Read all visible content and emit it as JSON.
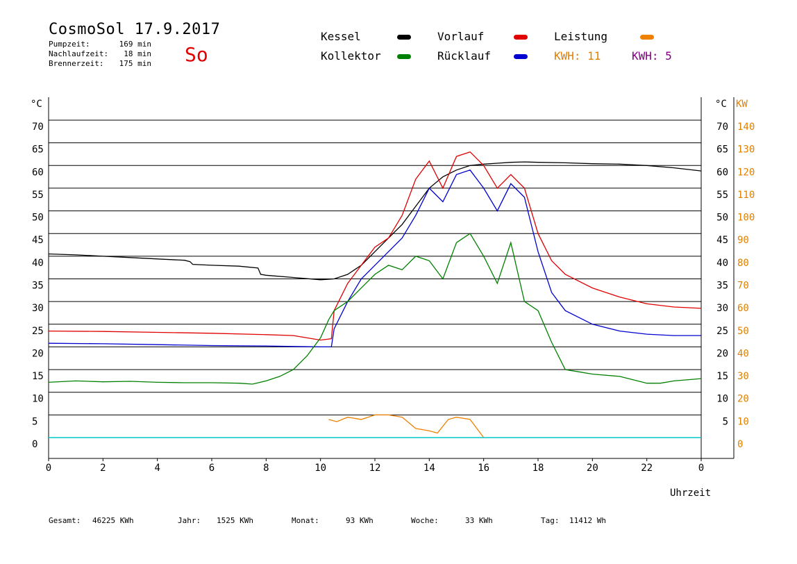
{
  "header": {
    "title": "CosmoSol 17.9.2017",
    "day": "So",
    "info": [
      {
        "label": "Pumpzeit:",
        "value": "169 min"
      },
      {
        "label": "Nachlaufzeit:",
        "value": "18 min"
      },
      {
        "label": "Brennerzeit:",
        "value": "175 min"
      }
    ]
  },
  "legend": {
    "kessel": {
      "label": "Kessel",
      "color": "#000000"
    },
    "vorlauf": {
      "label": "Vorlauf",
      "color": "#e00000"
    },
    "leistung": {
      "label": "Leistung",
      "color": "#f08000"
    },
    "kollektor": {
      "label": "Kollektor",
      "color": "#008000"
    },
    "ruecklauf": {
      "label": "Rücklauf",
      "color": "#0000d0"
    },
    "kwh1": {
      "label": "KWH: 11",
      "color": "#e08000"
    },
    "kwh2": {
      "label": "KWH: 5",
      "color": "#800080"
    }
  },
  "footer": {
    "gesamt_label": "Gesamt:",
    "gesamt_value": "46225 KWh",
    "jahr_label": "Jahr:",
    "jahr_value": "1525 KWh",
    "monat_label": "Monat:",
    "monat_value": "93 KWh",
    "woche_label": "Woche:",
    "woche_value": "33 KWh",
    "tag_label": "Tag:",
    "tag_value": "11412 Wh"
  },
  "chart_data": {
    "type": "line",
    "title": "CosmoSol 17.9.2017",
    "xlabel": "Uhrzeit",
    "ylabel_left": "°C",
    "ylabel_right_temp": "°C",
    "ylabel_right_power": "KW",
    "xlim": [
      0,
      24
    ],
    "ylim": [
      0,
      70
    ],
    "y2lim": [
      0,
      140
    ],
    "x_ticks": [
      "0",
      "2",
      "4",
      "6",
      "8",
      "10",
      "12",
      "14",
      "16",
      "18",
      "20",
      "22",
      "0"
    ],
    "y_ticks_left": [
      "0",
      "5",
      "10",
      "15",
      "20",
      "25",
      "30",
      "35",
      "40",
      "45",
      "50",
      "55",
      "60",
      "65",
      "70"
    ],
    "y_ticks_right": [
      "5",
      "10",
      "15",
      "20",
      "25",
      "30",
      "35",
      "40",
      "45",
      "50",
      "55",
      "60",
      "65",
      "70"
    ],
    "y2_ticks": [
      "0",
      "10",
      "20",
      "30",
      "40",
      "50",
      "60",
      "70",
      "80",
      "90",
      "100",
      "110",
      "120",
      "130",
      "140"
    ],
    "grid": "horizontal",
    "series": [
      {
        "name": "Kessel",
        "color": "#000000",
        "x": [
          0,
          1,
          2,
          3,
          4,
          5,
          5.2,
          5.3,
          6,
          7,
          7.7,
          7.8,
          8,
          9,
          10,
          10.5,
          11,
          11.5,
          12,
          12.5,
          13,
          13.5,
          14,
          14.5,
          15,
          15.5,
          16,
          16.5,
          17,
          17.5,
          18,
          19,
          20,
          21,
          22,
          23,
          24
        ],
        "y": [
          40.5,
          40.3,
          40,
          39.7,
          39.4,
          39.1,
          38.8,
          38.2,
          38,
          37.8,
          37.4,
          36,
          35.8,
          35.3,
          34.8,
          35,
          36,
          38,
          41,
          44,
          47,
          51,
          55,
          57.5,
          59,
          60,
          60.3,
          60.5,
          60.7,
          60.8,
          60.7,
          60.6,
          60.4,
          60.3,
          60,
          59.5,
          58.8
        ]
      },
      {
        "name": "Vorlauf",
        "color": "#e00000",
        "x": [
          0,
          2,
          4,
          6,
          8,
          9,
          9.5,
          10,
          10.4,
          10.5,
          11,
          11.5,
          12,
          12.5,
          13,
          13.5,
          14,
          14.5,
          15,
          15.5,
          16,
          16.5,
          17,
          17.5,
          18,
          18.5,
          19,
          20,
          21,
          22,
          23,
          24
        ],
        "y": [
          23.5,
          23.4,
          23.2,
          23,
          22.7,
          22.5,
          22,
          21.5,
          21.8,
          28,
          34,
          38,
          42,
          44,
          49,
          57,
          61,
          55,
          62,
          63,
          60,
          55,
          58,
          55,
          45,
          39,
          36,
          33,
          31,
          29.5,
          28.8,
          28.5
        ]
      },
      {
        "name": "Rücklauf",
        "color": "#0000d0",
        "x": [
          0,
          2,
          4,
          6,
          8,
          9,
          10,
          10.4,
          10.5,
          11,
          11.5,
          12,
          12.5,
          13,
          13.5,
          14,
          14.5,
          15,
          15.5,
          16,
          16.5,
          17,
          17.5,
          18,
          18.5,
          19,
          20,
          21,
          22,
          23,
          24
        ],
        "y": [
          20.8,
          20.7,
          20.5,
          20.3,
          20.2,
          20.1,
          20,
          20,
          24,
          30,
          35,
          38,
          41,
          44,
          49,
          55,
          52,
          58,
          59,
          55,
          50,
          56,
          53,
          41,
          32,
          28,
          25,
          23.5,
          22.8,
          22.5,
          22.5
        ]
      },
      {
        "name": "Kollektor",
        "color": "#008000",
        "x": [
          0,
          1,
          2,
          3,
          4,
          5,
          6,
          7,
          7.5,
          8,
          8.5,
          9,
          9.5,
          10,
          10.3,
          10.5,
          11,
          11.5,
          12,
          12.5,
          13,
          13.5,
          14,
          14.5,
          15,
          15.5,
          16,
          16.5,
          17,
          17.5,
          18,
          18.5,
          19,
          19.5,
          20,
          21,
          22,
          22.5,
          23,
          24
        ],
        "y": [
          12.2,
          12.5,
          12.3,
          12.4,
          12.2,
          12.1,
          12.1,
          12,
          11.8,
          12.5,
          13.5,
          15,
          18,
          22,
          26,
          28,
          30,
          33,
          36,
          38,
          37,
          40,
          39,
          35,
          43,
          45,
          40,
          34,
          43,
          30,
          28,
          21,
          15,
          14.5,
          14,
          13.5,
          12,
          12,
          12.5,
          13
        ]
      },
      {
        "name": "Leistung",
        "color": "#f08000",
        "x": [
          10.3,
          10.6,
          11,
          11.5,
          12,
          12.5,
          13,
          13.5,
          14,
          14.3,
          14.7,
          15,
          15.5,
          16
        ],
        "y": [
          4,
          3.5,
          4.5,
          4,
          5,
          5,
          4.5,
          2,
          1.5,
          1,
          4,
          4.5,
          4,
          0
        ]
      }
    ]
  }
}
